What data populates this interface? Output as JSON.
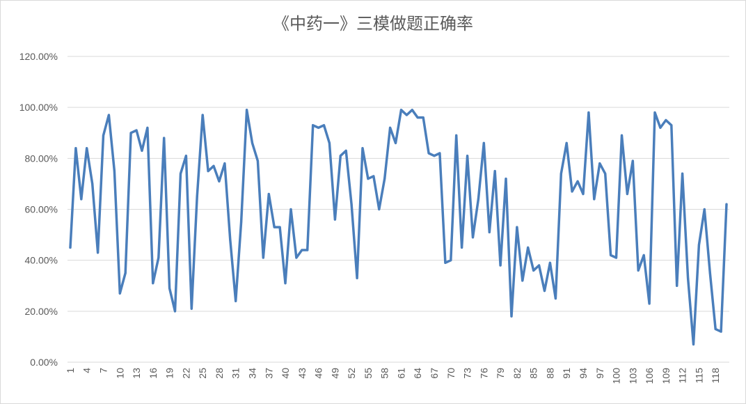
{
  "chart_data": {
    "type": "line",
    "title": "《中药一》三模做题正确率",
    "xlabel": "",
    "ylabel": "",
    "ylim": [
      0,
      1.2
    ],
    "y_ticks": [
      "0.00%",
      "20.00%",
      "40.00%",
      "60.00%",
      "80.00%",
      "100.00%",
      "120.00%"
    ],
    "x_tick_labels": [
      "1",
      "4",
      "7",
      "10",
      "13",
      "16",
      "19",
      "22",
      "25",
      "28",
      "31",
      "34",
      "37",
      "40",
      "43",
      "46",
      "49",
      "52",
      "55",
      "58",
      "61",
      "64",
      "67",
      "70",
      "73",
      "76",
      "79",
      "82",
      "85",
      "88",
      "91",
      "94",
      "97",
      "100",
      "103",
      "106",
      "109",
      "112",
      "115",
      "118"
    ],
    "grid": true,
    "legend": "none",
    "series_color": "#4a7ebb",
    "x": [
      1,
      2,
      3,
      4,
      5,
      6,
      7,
      8,
      9,
      10,
      11,
      12,
      13,
      14,
      15,
      16,
      17,
      18,
      19,
      20,
      21,
      22,
      23,
      24,
      25,
      26,
      27,
      28,
      29,
      30,
      31,
      32,
      33,
      34,
      35,
      36,
      37,
      38,
      39,
      40,
      41,
      42,
      43,
      44,
      45,
      46,
      47,
      48,
      49,
      50,
      51,
      52,
      53,
      54,
      55,
      56,
      57,
      58,
      59,
      60,
      61,
      62,
      63,
      64,
      65,
      66,
      67,
      68,
      69,
      70,
      71,
      72,
      73,
      74,
      75,
      76,
      77,
      78,
      79,
      80,
      81,
      82,
      83,
      84,
      85,
      86,
      87,
      88,
      89,
      90,
      91,
      92,
      93,
      94,
      95,
      96,
      97,
      98,
      99,
      100,
      101,
      102,
      103,
      104,
      105,
      106,
      107,
      108,
      109,
      110,
      111,
      112,
      113,
      114,
      115,
      116,
      117,
      118,
      119,
      120
    ],
    "values": [
      0.45,
      0.84,
      0.64,
      0.84,
      0.7,
      0.43,
      0.89,
      0.97,
      0.75,
      0.27,
      0.35,
      0.9,
      0.91,
      0.83,
      0.92,
      0.31,
      0.41,
      0.88,
      0.29,
      0.2,
      0.74,
      0.81,
      0.21,
      0.65,
      0.97,
      0.75,
      0.77,
      0.71,
      0.78,
      0.48,
      0.24,
      0.55,
      0.99,
      0.86,
      0.79,
      0.41,
      0.66,
      0.53,
      0.53,
      0.31,
      0.6,
      0.41,
      0.44,
      0.44,
      0.93,
      0.92,
      0.93,
      0.86,
      0.56,
      0.81,
      0.83,
      0.62,
      0.33,
      0.84,
      0.72,
      0.73,
      0.6,
      0.72,
      0.92,
      0.86,
      0.99,
      0.97,
      0.99,
      0.96,
      0.96,
      0.82,
      0.81,
      0.82,
      0.39,
      0.4,
      0.89,
      0.45,
      0.81,
      0.49,
      0.64,
      0.86,
      0.51,
      0.75,
      0.38,
      0.72,
      0.18,
      0.53,
      0.32,
      0.45,
      0.36,
      0.38,
      0.28,
      0.39,
      0.25,
      0.74,
      0.86,
      0.67,
      0.71,
      0.66,
      0.98,
      0.64,
      0.78,
      0.74,
      0.42,
      0.41,
      0.89,
      0.66,
      0.79,
      0.36,
      0.42,
      0.23,
      0.98,
      0.92,
      0.95,
      0.93,
      0.3,
      0.74,
      0.33,
      0.07,
      0.46,
      0.6,
      0.35,
      0.13,
      0.12,
      0.62
    ]
  }
}
